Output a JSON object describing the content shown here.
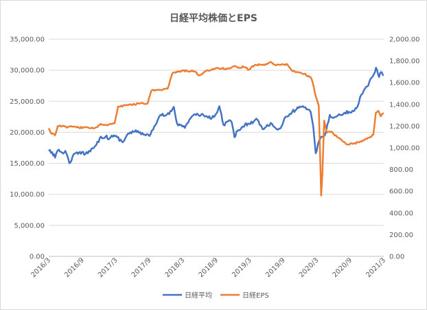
{
  "chart_data": {
    "type": "line",
    "title": "日経平均株価とEPS",
    "xlabel": "",
    "y1label": "",
    "y2label": "",
    "grid": true,
    "legend_position": "bottom",
    "x_ticks": [
      "2016/3",
      "2016/9",
      "2017/3",
      "2017/9",
      "2018/3",
      "2018/9",
      "2019/3",
      "2019/9",
      "2020/3",
      "2020/9",
      "2021/3"
    ],
    "y1_ticks": [
      "0.00",
      "5,000.00",
      "10,000.00",
      "15,000.00",
      "20,000.00",
      "25,000.00",
      "30,000.00",
      "35,000.00"
    ],
    "y2_ticks": [
      "0.00",
      "200.00",
      "400.00",
      "600.00",
      "800.00",
      "1,000.00",
      "1,200.00",
      "1,400.00",
      "1,600.00",
      "1,800.00",
      "2,000.00"
    ],
    "y1lim": [
      0,
      35000
    ],
    "y2lim": [
      0,
      2000
    ],
    "colors": {
      "nikkei": "#4472c4",
      "eps": "#ed7d31"
    },
    "series": [
      {
        "name": "日経平均",
        "axis": "left",
        "points": [
          [
            "2016-03-01",
            17000
          ],
          [
            "2016-03-20",
            16800
          ],
          [
            "2016-04-05",
            15900
          ],
          [
            "2016-04-25",
            17200
          ],
          [
            "2016-05-15",
            16700
          ],
          [
            "2016-06-01",
            17000
          ],
          [
            "2016-06-24",
            15000
          ],
          [
            "2016-07-10",
            16000
          ],
          [
            "2016-07-25",
            16600
          ],
          [
            "2016-08-10",
            16500
          ],
          [
            "2016-09-01",
            16800
          ],
          [
            "2016-09-20",
            16500
          ],
          [
            "2016-10-10",
            17000
          ],
          [
            "2016-10-31",
            17400
          ],
          [
            "2016-11-20",
            18000
          ],
          [
            "2016-12-15",
            19300
          ],
          [
            "2017-01-10",
            19300
          ],
          [
            "2017-02-01",
            19000
          ],
          [
            "2017-02-25",
            19500
          ],
          [
            "2017-03-15",
            19200
          ],
          [
            "2017-04-15",
            18400
          ],
          [
            "2017-05-15",
            19800
          ],
          [
            "2017-06-20",
            20100
          ],
          [
            "2017-07-20",
            20000
          ],
          [
            "2017-08-20",
            19500
          ],
          [
            "2017-09-10",
            19400
          ],
          [
            "2017-09-30",
            20400
          ],
          [
            "2017-10-20",
            21500
          ],
          [
            "2017-11-10",
            22800
          ],
          [
            "2017-12-10",
            22700
          ],
          [
            "2018-01-10",
            23400
          ],
          [
            "2018-01-23",
            24100
          ],
          [
            "2018-02-10",
            21400
          ],
          [
            "2018-03-05",
            21200
          ],
          [
            "2018-03-25",
            20700
          ],
          [
            "2018-04-20",
            22100
          ],
          [
            "2018-05-20",
            22900
          ],
          [
            "2018-06-20",
            22700
          ],
          [
            "2018-07-20",
            22600
          ],
          [
            "2018-08-20",
            22200
          ],
          [
            "2018-09-10",
            22800
          ],
          [
            "2018-10-02",
            24200
          ],
          [
            "2018-10-25",
            21200
          ],
          [
            "2018-11-20",
            21800
          ],
          [
            "2018-12-10",
            21600
          ],
          [
            "2018-12-25",
            19200
          ],
          [
            "2019-01-10",
            20200
          ],
          [
            "2019-02-10",
            20900
          ],
          [
            "2019-03-10",
            21400
          ],
          [
            "2019-04-10",
            21700
          ],
          [
            "2019-04-25",
            22200
          ],
          [
            "2019-05-20",
            21100
          ],
          [
            "2019-06-05",
            20500
          ],
          [
            "2019-06-25",
            21200
          ],
          [
            "2019-07-20",
            21400
          ],
          [
            "2019-08-15",
            20500
          ],
          [
            "2019-09-05",
            20600
          ],
          [
            "2019-09-25",
            22000
          ],
          [
            "2019-10-20",
            22600
          ],
          [
            "2019-11-10",
            23300
          ],
          [
            "2019-12-15",
            23900
          ],
          [
            "2020-01-15",
            24000
          ],
          [
            "2020-02-05",
            23700
          ],
          [
            "2020-02-20",
            23300
          ],
          [
            "2020-03-05",
            21000
          ],
          [
            "2020-03-19",
            16600
          ],
          [
            "2020-04-05",
            18500
          ],
          [
            "2020-04-25",
            19300
          ],
          [
            "2020-05-15",
            20000
          ],
          [
            "2020-06-05",
            22800
          ],
          [
            "2020-06-25",
            22300
          ],
          [
            "2020-07-20",
            22700
          ],
          [
            "2020-08-20",
            23000
          ],
          [
            "2020-09-20",
            23300
          ],
          [
            "2020-10-20",
            23500
          ],
          [
            "2020-11-05",
            24100
          ],
          [
            "2020-11-20",
            25700
          ],
          [
            "2020-12-10",
            26700
          ],
          [
            "2020-12-30",
            27400
          ],
          [
            "2021-01-15",
            28500
          ],
          [
            "2021-02-05",
            29400
          ],
          [
            "2021-02-16",
            30400
          ],
          [
            "2021-03-05",
            28900
          ],
          [
            "2021-03-15",
            29700
          ],
          [
            "2021-03-31",
            29200
          ]
        ]
      },
      {
        "name": "日経EPS",
        "axis": "right",
        "points": [
          [
            "2016-03-01",
            1180
          ],
          [
            "2016-03-15",
            1130
          ],
          [
            "2016-04-05",
            1115
          ],
          [
            "2016-04-20",
            1200
          ],
          [
            "2016-05-15",
            1200
          ],
          [
            "2016-06-15",
            1190
          ],
          [
            "2016-07-15",
            1195
          ],
          [
            "2016-08-15",
            1185
          ],
          [
            "2016-09-15",
            1190
          ],
          [
            "2016-10-15",
            1180
          ],
          [
            "2016-11-15",
            1185
          ],
          [
            "2016-12-15",
            1220
          ],
          [
            "2017-01-15",
            1210
          ],
          [
            "2017-02-15",
            1220
          ],
          [
            "2017-03-01",
            1225
          ],
          [
            "2017-03-20",
            1380
          ],
          [
            "2017-05-15",
            1395
          ],
          [
            "2017-07-15",
            1405
          ],
          [
            "2017-09-01",
            1410
          ],
          [
            "2017-09-20",
            1525
          ],
          [
            "2017-11-15",
            1530
          ],
          [
            "2017-12-20",
            1545
          ],
          [
            "2018-01-15",
            1685
          ],
          [
            "2018-03-15",
            1710
          ],
          [
            "2018-05-15",
            1705
          ],
          [
            "2018-06-15",
            1665
          ],
          [
            "2018-07-15",
            1700
          ],
          [
            "2018-09-15",
            1735
          ],
          [
            "2018-11-15",
            1725
          ],
          [
            "2018-12-20",
            1750
          ],
          [
            "2019-01-15",
            1735
          ],
          [
            "2019-02-15",
            1745
          ],
          [
            "2019-03-15",
            1720
          ],
          [
            "2019-04-15",
            1760
          ],
          [
            "2019-06-15",
            1770
          ],
          [
            "2019-07-15",
            1790
          ],
          [
            "2019-08-15",
            1760
          ],
          [
            "2019-09-15",
            1770
          ],
          [
            "2019-10-15",
            1765
          ],
          [
            "2019-11-05",
            1715
          ],
          [
            "2019-11-25",
            1700
          ],
          [
            "2020-01-15",
            1680
          ],
          [
            "2020-02-20",
            1650
          ],
          [
            "2020-03-01",
            1610
          ],
          [
            "2020-03-20",
            1470
          ],
          [
            "2020-04-05",
            1390
          ],
          [
            "2020-04-18",
            560
          ],
          [
            "2020-04-25",
            760
          ],
          [
            "2020-05-05",
            1250
          ],
          [
            "2020-05-20",
            1140
          ],
          [
            "2020-06-15",
            1150
          ],
          [
            "2020-07-15",
            1100
          ],
          [
            "2020-08-15",
            1060
          ],
          [
            "2020-09-15",
            1030
          ],
          [
            "2020-10-15",
            1040
          ],
          [
            "2020-11-15",
            1050
          ],
          [
            "2020-12-15",
            1075
          ],
          [
            "2021-01-15",
            1100
          ],
          [
            "2021-02-01",
            1120
          ],
          [
            "2021-02-15",
            1320
          ],
          [
            "2021-03-01",
            1340
          ],
          [
            "2021-03-15",
            1290
          ],
          [
            "2021-03-31",
            1320
          ]
        ]
      }
    ]
  }
}
